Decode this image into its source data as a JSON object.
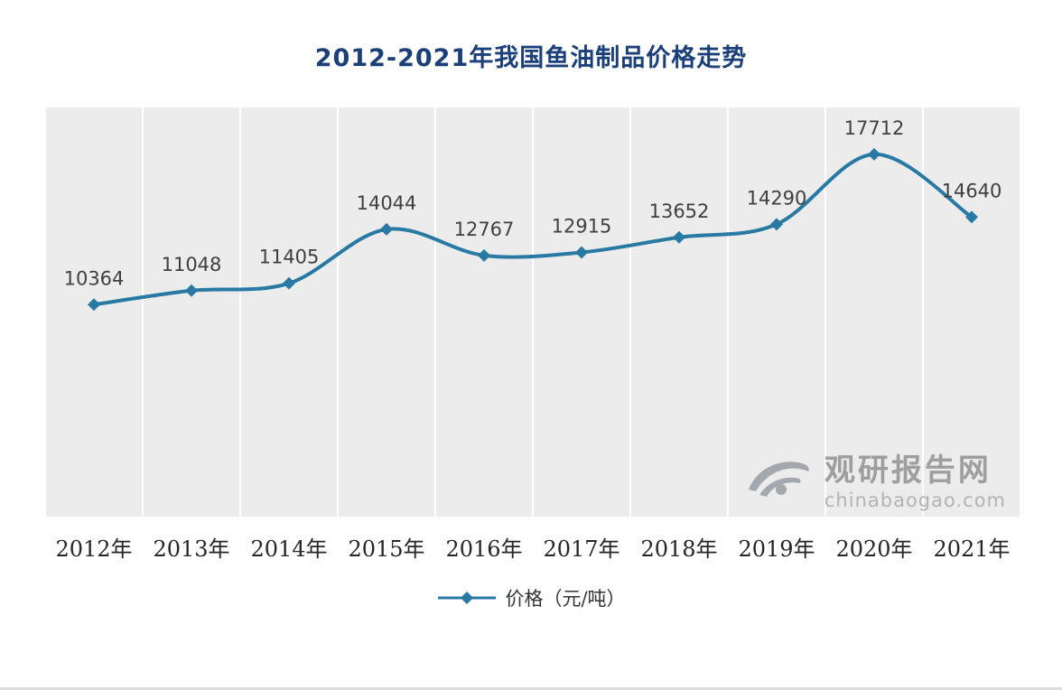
{
  "chart_data": {
    "type": "line",
    "title": "2012-2021年我国鱼油制品价格走势",
    "categories": [
      "2012年",
      "2013年",
      "2014年",
      "2015年",
      "2016年",
      "2017年",
      "2018年",
      "2019年",
      "2020年",
      "2021年"
    ],
    "values": [
      10364,
      11048,
      11405,
      14044,
      12767,
      12915,
      13652,
      14290,
      17712,
      14640
    ],
    "series_name": "价格（元/吨）",
    "ylim": [
      0,
      20000
    ],
    "grid": "vertical-white-gridlines",
    "legend_position": "bottom",
    "line_color": "#2879a4",
    "label_color": "#404040"
  },
  "legend": {
    "label": "价格（元/吨）"
  },
  "watermark": {
    "name": "观研报告网",
    "url": "chinabaogao.com"
  },
  "colors": {
    "title": "#1b4079",
    "plot_bg": "#ececec",
    "axis_label": "#262626",
    "watermark_name": "#9e9e9e",
    "watermark_url": "#b3b3b3",
    "watermark_logo": "#a2a8ad"
  }
}
